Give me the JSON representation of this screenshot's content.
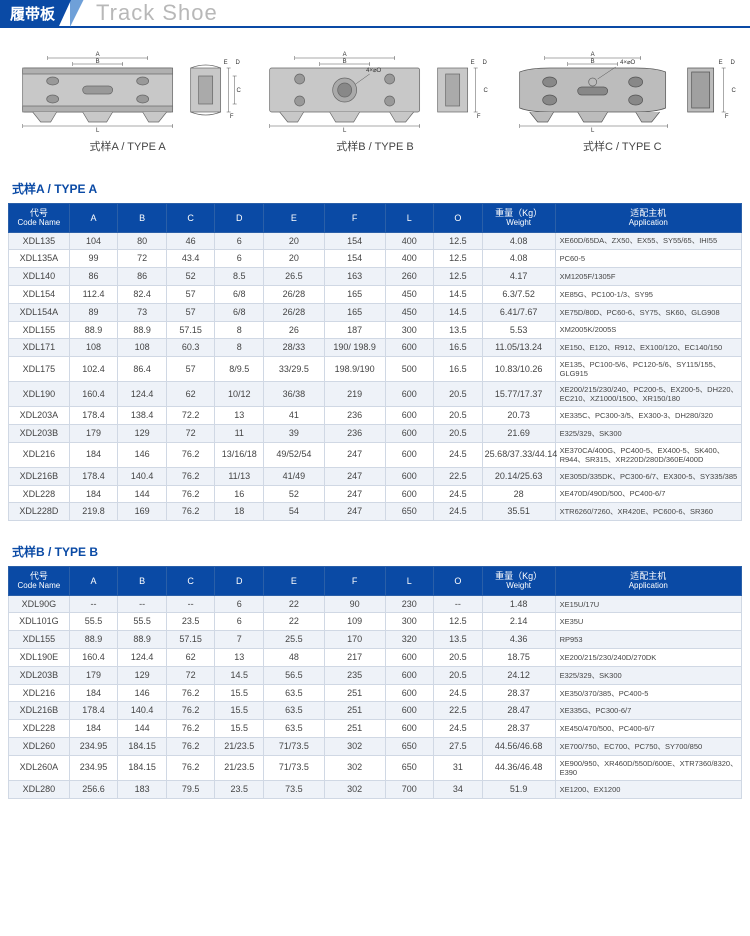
{
  "title": {
    "cn": "履带板",
    "en": "Track Shoe"
  },
  "diagram_labels": [
    "式样A  / TYPE A",
    "式样B  / TYPE B",
    "式样C  / TYPE C"
  ],
  "section_titles": [
    "式样A  / TYPE A",
    "式样B  / TYPE B"
  ],
  "columns": [
    {
      "cn": "代号",
      "en": "Code Name"
    },
    {
      "cn": "A",
      "en": ""
    },
    {
      "cn": "B",
      "en": ""
    },
    {
      "cn": "C",
      "en": ""
    },
    {
      "cn": "D",
      "en": ""
    },
    {
      "cn": "E",
      "en": ""
    },
    {
      "cn": "F",
      "en": ""
    },
    {
      "cn": "L",
      "en": ""
    },
    {
      "cn": "O",
      "en": ""
    },
    {
      "cn": "重量（Kg）",
      "en": "Weight"
    },
    {
      "cn": "适配主机",
      "en": "Application"
    }
  ],
  "tableA": [
    [
      "XDL135",
      "104",
      "80",
      "46",
      "6",
      "20",
      "154",
      "400",
      "12.5",
      "4.08",
      "XE60D/65DA、ZX50、EX55、SY55/65、IHI55"
    ],
    [
      "XDL135A",
      "99",
      "72",
      "43.4",
      "6",
      "20",
      "154",
      "400",
      "12.5",
      "4.08",
      "PC60-5"
    ],
    [
      "XDL140",
      "86",
      "86",
      "52",
      "8.5",
      "26.5",
      "163",
      "260",
      "12.5",
      "4.17",
      "XM1205F/1305F"
    ],
    [
      "XDL154",
      "112.4",
      "82.4",
      "57",
      "6/8",
      "26/28",
      "165",
      "450",
      "14.5",
      "6.3/7.52",
      "XE85G、PC100-1/3、SY95"
    ],
    [
      "XDL154A",
      "89",
      "73",
      "57",
      "6/8",
      "26/28",
      "165",
      "450",
      "14.5",
      "6.41/7.67",
      "XE75D/80D、PC60-6、SY75、SK60、GLG908"
    ],
    [
      "XDL155",
      "88.9",
      "88.9",
      "57.15",
      "8",
      "26",
      "187",
      "300",
      "13.5",
      "5.53",
      "XM2005K/2005S"
    ],
    [
      "XDL171",
      "108",
      "108",
      "60.3",
      "8",
      "28/33",
      "190/ 198.9",
      "600",
      "16.5",
      "11.05/13.24",
      "XE150、E120、R912、EX100/120、EC140/150"
    ],
    [
      "XDL175",
      "102.4",
      "86.4",
      "57",
      "8/9.5",
      "33/29.5",
      "198.9/190",
      "500",
      "16.5",
      "10.83/10.26",
      "XE135、PC100-5/6、PC120-5/6、SY115/155、GLG915"
    ],
    [
      "XDL190",
      "160.4",
      "124.4",
      "62",
      "10/12",
      "36/38",
      "219",
      "600",
      "20.5",
      "15.77/17.37",
      "XE200/215/230/240、PC200-5、EX200-5、DH220、EC210、XZ1000/1500、XR150/180"
    ],
    [
      "XDL203A",
      "178.4",
      "138.4",
      "72.2",
      "13",
      "41",
      "236",
      "600",
      "20.5",
      "20.73",
      "XE335C、PC300-3/5、EX300-3、DH280/320"
    ],
    [
      "XDL203B",
      "179",
      "129",
      "72",
      "11",
      "39",
      "236",
      "600",
      "20.5",
      "21.69",
      "E325/329、SK300"
    ],
    [
      "XDL216",
      "184",
      "146",
      "76.2",
      "13/16/18",
      "49/52/54",
      "247",
      "600",
      "24.5",
      "25.68/37.33/44.14",
      "XE370CA/400G、PC400-5、EX400-5、SK400、R944、SR315、XR220D/280D/360E/400D"
    ],
    [
      "XDL216B",
      "178.4",
      "140.4",
      "76.2",
      "11/13",
      "41/49",
      "247",
      "600",
      "22.5",
      "20.14/25.63",
      "XE305D/335DK、PC300-6/7、EX300-5、SY335/385"
    ],
    [
      "XDL228",
      "184",
      "144",
      "76.2",
      "16",
      "52",
      "247",
      "600",
      "24.5",
      "28",
      "XE470D/490D/500、PC400-6/7"
    ],
    [
      "XDL228D",
      "219.8",
      "169",
      "76.2",
      "18",
      "54",
      "247",
      "650",
      "24.5",
      "35.51",
      "XTR6260/7260、XR420E、PC600-6、SR360"
    ]
  ],
  "tableB": [
    [
      "XDL90G",
      "--",
      "--",
      "--",
      "6",
      "22",
      "90",
      "230",
      "--",
      "1.48",
      "XE15U/17U"
    ],
    [
      "XDL101G",
      "55.5",
      "55.5",
      "23.5",
      "6",
      "22",
      "109",
      "300",
      "12.5",
      "2.14",
      "XE35U"
    ],
    [
      "XDL155",
      "88.9",
      "88.9",
      "57.15",
      "7",
      "25.5",
      "170",
      "320",
      "13.5",
      "4.36",
      "RP953"
    ],
    [
      "XDL190E",
      "160.4",
      "124.4",
      "62",
      "13",
      "48",
      "217",
      "600",
      "20.5",
      "18.75",
      "XE200/215/230/240D/270DK"
    ],
    [
      "XDL203B",
      "179",
      "129",
      "72",
      "14.5",
      "56.5",
      "235",
      "600",
      "20.5",
      "24.12",
      "E325/329、SK300"
    ],
    [
      "XDL216",
      "184",
      "146",
      "76.2",
      "15.5",
      "63.5",
      "251",
      "600",
      "24.5",
      "28.37",
      "XE350/370/385、PC400-5"
    ],
    [
      "XDL216B",
      "178.4",
      "140.4",
      "76.2",
      "15.5",
      "63.5",
      "251",
      "600",
      "22.5",
      "28.47",
      "XE335G、PC300-6/7"
    ],
    [
      "XDL228",
      "184",
      "144",
      "76.2",
      "15.5",
      "63.5",
      "251",
      "600",
      "24.5",
      "28.37",
      "XE450/470/500、PC400-6/7"
    ],
    [
      "XDL260",
      "234.95",
      "184.15",
      "76.2",
      "21/23.5",
      "71/73.5",
      "302",
      "650",
      "27.5",
      "44.56/46.68",
      "XE700/750、EC700、PC750、SY700/850"
    ],
    [
      "XDL260A",
      "234.95",
      "184.15",
      "76.2",
      "21/23.5",
      "71/73.5",
      "302",
      "650",
      "31",
      "44.36/46.48",
      "XE900/950、XR460D/550D/600E、XTR7360/8320、E390"
    ],
    [
      "XDL280",
      "256.6",
      "183",
      "79.5",
      "23.5",
      "73.5",
      "302",
      "700",
      "34",
      "51.9",
      "XE1200、EX1200"
    ]
  ],
  "colors": {
    "header": "#0a4aa5",
    "stripe": "#eef2f8",
    "border": "#d0d8e4"
  }
}
